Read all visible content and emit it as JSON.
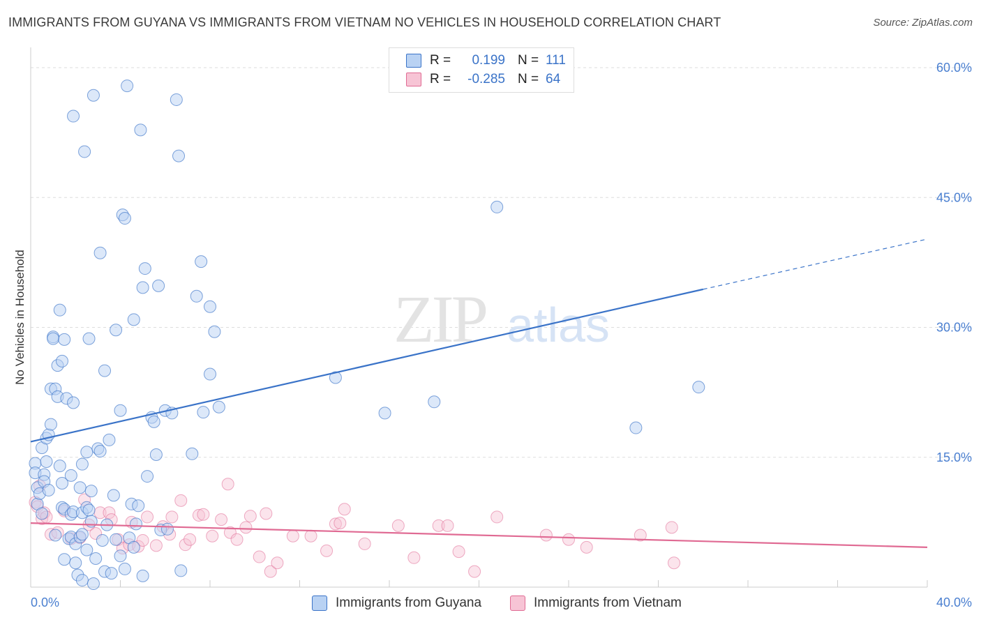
{
  "title": "IMMIGRANTS FROM GUYANA VS IMMIGRANTS FROM VIETNAM NO VEHICLES IN HOUSEHOLD CORRELATION CHART",
  "source": "Source: ZipAtlas.com",
  "watermark": {
    "zip": "ZIP",
    "atlas": "atlas"
  },
  "legend": {
    "guyana": {
      "r_label": "R =",
      "r_value": "0.199",
      "n_label": "N =",
      "n_value": "111"
    },
    "vietnam": {
      "r_label": "R =",
      "r_value": "-0.285",
      "n_label": "N =",
      "n_value": "64"
    }
  },
  "bottom_legend": {
    "guyana": "Immigrants from Guyana",
    "vietnam": "Immigrants from Vietnam"
  },
  "colors": {
    "guyana": "#3a73c8",
    "guyana_fill": "#b9d2f3",
    "vietnam": "#e06a93",
    "vietnam_fill": "#f7c4d5",
    "tick": "#4a7fd0",
    "grid": "#dddddd"
  },
  "chart_data": {
    "type": "scatter",
    "xlabel": "",
    "ylabel": "No Vehicles in Household",
    "xlim": [
      0,
      40
    ],
    "ylim": [
      0,
      60
    ],
    "x_tick_labels": [
      "0.0%",
      "40.0%"
    ],
    "y_ticks": [
      15,
      30,
      45,
      60
    ],
    "y_tick_labels": [
      "15.0%",
      "30.0%",
      "45.0%",
      "60.0%"
    ],
    "grid": true,
    "legend_position": "top-center",
    "series": [
      {
        "name": "Immigrants from Guyana",
        "r": 0.199,
        "n": 111,
        "trend": {
          "x0": 0,
          "y0": 16.8,
          "x1": 30,
          "y1": 34.4,
          "dashed_to_x": 40,
          "dashed_to_y": 40.2
        },
        "points": [
          [
            0.2,
            14.3
          ],
          [
            0.2,
            13.2
          ],
          [
            0.3,
            11.5
          ],
          [
            0.3,
            9.6
          ],
          [
            0.4,
            10.8
          ],
          [
            0.5,
            8.5
          ],
          [
            0.5,
            16.1
          ],
          [
            0.6,
            13.0
          ],
          [
            0.6,
            12.2
          ],
          [
            0.7,
            14.5
          ],
          [
            0.7,
            17.2
          ],
          [
            0.8,
            11.2
          ],
          [
            0.8,
            17.6
          ],
          [
            0.9,
            18.8
          ],
          [
            0.9,
            22.9
          ],
          [
            1.0,
            28.9
          ],
          [
            1.0,
            28.7
          ],
          [
            1.1,
            22.9
          ],
          [
            1.1,
            6.0
          ],
          [
            1.2,
            22.0
          ],
          [
            1.2,
            25.6
          ],
          [
            1.3,
            32.0
          ],
          [
            1.3,
            14.0
          ],
          [
            1.4,
            12.0
          ],
          [
            1.4,
            9.2
          ],
          [
            1.4,
            26.1
          ],
          [
            1.5,
            28.6
          ],
          [
            1.5,
            3.2
          ],
          [
            1.5,
            9.0
          ],
          [
            1.6,
            21.8
          ],
          [
            1.7,
            5.6
          ],
          [
            1.8,
            5.8
          ],
          [
            1.8,
            8.4
          ],
          [
            1.8,
            12.9
          ],
          [
            1.9,
            54.4
          ],
          [
            1.9,
            21.3
          ],
          [
            1.9,
            8.7
          ],
          [
            2.0,
            5.0
          ],
          [
            2.0,
            2.8
          ],
          [
            2.1,
            1.4
          ],
          [
            2.2,
            11.5
          ],
          [
            2.2,
            5.8
          ],
          [
            2.3,
            14.2
          ],
          [
            2.3,
            0.8
          ],
          [
            2.3,
            8.6
          ],
          [
            2.3,
            6.1
          ],
          [
            2.4,
            50.3
          ],
          [
            2.5,
            15.6
          ],
          [
            2.5,
            9.2
          ],
          [
            2.5,
            4.3
          ],
          [
            2.6,
            28.7
          ],
          [
            2.6,
            8.9
          ],
          [
            2.7,
            7.6
          ],
          [
            2.7,
            11.1
          ],
          [
            2.8,
            0.4
          ],
          [
            2.8,
            56.8
          ],
          [
            2.9,
            3.3
          ],
          [
            3.0,
            16.0
          ],
          [
            3.1,
            38.6
          ],
          [
            3.1,
            15.7
          ],
          [
            3.2,
            5.4
          ],
          [
            3.3,
            25.0
          ],
          [
            3.3,
            1.8
          ],
          [
            3.4,
            7.2
          ],
          [
            3.5,
            17.0
          ],
          [
            3.6,
            1.6
          ],
          [
            3.7,
            10.6
          ],
          [
            3.8,
            29.7
          ],
          [
            3.8,
            5.5
          ],
          [
            4.0,
            20.4
          ],
          [
            4.0,
            3.6
          ],
          [
            4.1,
            43.0
          ],
          [
            4.2,
            42.6
          ],
          [
            4.3,
            57.9
          ],
          [
            4.4,
            5.7
          ],
          [
            4.5,
            9.6
          ],
          [
            4.6,
            30.9
          ],
          [
            4.6,
            4.6
          ],
          [
            4.7,
            7.3
          ],
          [
            4.8,
            9.4
          ],
          [
            4.9,
            52.8
          ],
          [
            5.0,
            1.3
          ],
          [
            5.0,
            34.6
          ],
          [
            5.1,
            36.8
          ],
          [
            5.2,
            12.8
          ],
          [
            5.4,
            19.6
          ],
          [
            5.5,
            19.1
          ],
          [
            5.6,
            15.3
          ],
          [
            5.7,
            34.8
          ],
          [
            5.8,
            6.6
          ],
          [
            6.0,
            20.4
          ],
          [
            6.1,
            6.7
          ],
          [
            6.3,
            20.1
          ],
          [
            6.5,
            56.3
          ],
          [
            6.6,
            49.8
          ],
          [
            6.7,
            1.9
          ],
          [
            7.2,
            15.4
          ],
          [
            7.4,
            33.6
          ],
          [
            7.6,
            37.6
          ],
          [
            7.7,
            20.2
          ],
          [
            8.0,
            32.4
          ],
          [
            8.0,
            24.6
          ],
          [
            8.2,
            29.5
          ],
          [
            8.4,
            20.8
          ],
          [
            13.6,
            24.2
          ],
          [
            15.8,
            20.1
          ],
          [
            18.0,
            21.4
          ],
          [
            20.8,
            43.9
          ],
          [
            27.0,
            18.4
          ],
          [
            29.8,
            23.1
          ],
          [
            4.2,
            2.1
          ]
        ]
      },
      {
        "name": "Immigrants from Vietnam",
        "r": -0.285,
        "n": 64,
        "trend": {
          "x0": 0,
          "y0": 7.4,
          "x1": 40,
          "y1": 4.6
        },
        "points": [
          [
            0.2,
            9.8
          ],
          [
            0.3,
            9.3
          ],
          [
            0.4,
            11.7
          ],
          [
            0.5,
            7.9
          ],
          [
            0.6,
            8.6
          ],
          [
            0.7,
            8.1
          ],
          [
            0.9,
            6.1
          ],
          [
            1.2,
            6.3
          ],
          [
            1.5,
            8.8
          ],
          [
            1.8,
            5.6
          ],
          [
            2.2,
            5.7
          ],
          [
            2.4,
            10.1
          ],
          [
            2.6,
            7.2
          ],
          [
            2.9,
            6.2
          ],
          [
            3.1,
            8.6
          ],
          [
            3.5,
            8.6
          ],
          [
            3.6,
            7.8
          ],
          [
            3.9,
            5.5
          ],
          [
            4.1,
            4.5
          ],
          [
            4.4,
            4.9
          ],
          [
            4.5,
            7.5
          ],
          [
            4.8,
            4.7
          ],
          [
            5.0,
            5.4
          ],
          [
            5.2,
            8.1
          ],
          [
            5.6,
            4.8
          ],
          [
            5.9,
            7.0
          ],
          [
            6.2,
            6.1
          ],
          [
            6.3,
            8.1
          ],
          [
            6.7,
            10.0
          ],
          [
            6.9,
            4.9
          ],
          [
            7.1,
            5.5
          ],
          [
            7.5,
            8.3
          ],
          [
            7.7,
            8.4
          ],
          [
            8.1,
            5.9
          ],
          [
            8.5,
            7.8
          ],
          [
            8.8,
            11.9
          ],
          [
            8.9,
            6.3
          ],
          [
            9.2,
            5.5
          ],
          [
            9.6,
            6.9
          ],
          [
            9.8,
            8.2
          ],
          [
            10.2,
            3.5
          ],
          [
            10.5,
            8.5
          ],
          [
            10.7,
            1.8
          ],
          [
            11.0,
            2.8
          ],
          [
            11.7,
            5.9
          ],
          [
            12.5,
            5.9
          ],
          [
            13.2,
            4.2
          ],
          [
            13.6,
            7.3
          ],
          [
            13.8,
            7.4
          ],
          [
            14.0,
            9.0
          ],
          [
            14.9,
            5.0
          ],
          [
            16.4,
            7.1
          ],
          [
            17.1,
            3.4
          ],
          [
            18.2,
            7.1
          ],
          [
            18.6,
            7.1
          ],
          [
            19.1,
            4.1
          ],
          [
            19.8,
            1.8
          ],
          [
            20.8,
            8.1
          ],
          [
            23.0,
            6.0
          ],
          [
            24.0,
            5.5
          ],
          [
            24.8,
            4.6
          ],
          [
            27.2,
            6.0
          ],
          [
            28.6,
            6.9
          ],
          [
            28.7,
            2.8
          ]
        ]
      }
    ]
  }
}
